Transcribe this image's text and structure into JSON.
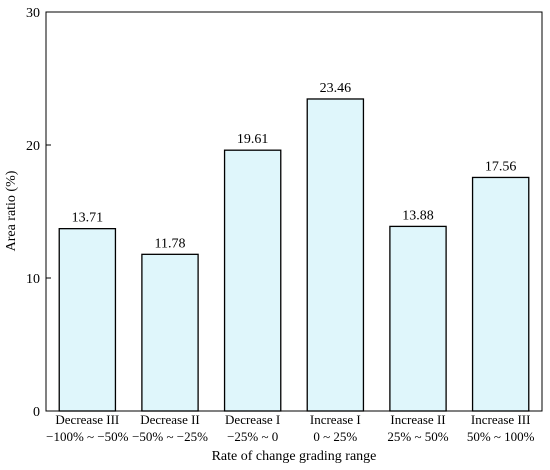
{
  "chart_data": {
    "type": "bar",
    "categories": [
      [
        "Decrease III",
        "−100% ~ −50%"
      ],
      [
        "Decrease II",
        "−50% ~ −25%"
      ],
      [
        "Decrease I",
        "−25% ~ 0"
      ],
      [
        "Increase I",
        "0 ~ 25%"
      ],
      [
        "Increase II",
        "25% ~ 50%"
      ],
      [
        "Increase III",
        "50% ~ 100%"
      ]
    ],
    "values": [
      13.71,
      11.78,
      19.61,
      23.46,
      13.88,
      17.56
    ],
    "data_labels": [
      "13.71",
      "11.78",
      "19.61",
      "23.46",
      "13.88",
      "17.56"
    ],
    "title": "",
    "xlabel": "Rate of change grading range",
    "ylabel": "Area ratio (%)",
    "ylim": [
      0,
      30
    ],
    "yticks": [
      "0",
      "10",
      "20",
      "30"
    ],
    "grid": false,
    "bar_fill": "#dff6fb",
    "bar_stroke": "#000000"
  }
}
